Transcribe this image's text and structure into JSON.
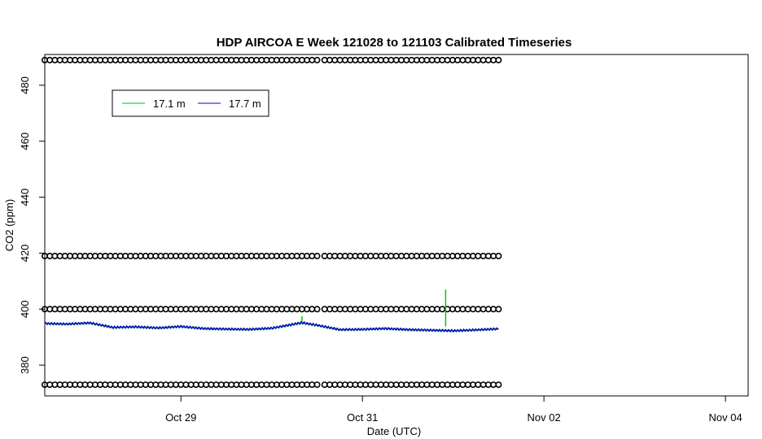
{
  "chart_data": {
    "type": "line",
    "title": "HDP AIRCOA E  Week 121028 to 121103  Calibrated Timeseries",
    "xlabel": "Date (UTC)",
    "ylabel": "CO2 (ppm)",
    "xlim": [
      "2012-10-27 12:00",
      "2012-11-04 06:00"
    ],
    "ylim": [
      369,
      491
    ],
    "x_ticks": [
      {
        "label": "Oct 29",
        "x": "2012-10-29 00:00"
      },
      {
        "label": "Oct 31",
        "x": "2012-10-31 00:00"
      },
      {
        "label": "Nov 02",
        "x": "2012-11-02 00:00"
      },
      {
        "label": "Nov 04",
        "x": "2012-11-04 00:00"
      }
    ],
    "y_ticks": [
      {
        "label": "380",
        "y": 380
      },
      {
        "label": "400",
        "y": 400
      },
      {
        "label": "420",
        "y": 420
      },
      {
        "label": "440",
        "y": 440
      },
      {
        "label": "460",
        "y": 460
      },
      {
        "label": "480",
        "y": 480
      }
    ],
    "grid": false,
    "legend": {
      "position": "top-left",
      "entries": [
        {
          "label": "17.1 m",
          "color": "#00c000"
        },
        {
          "label": "17.7 m",
          "color": "#0000cc"
        }
      ]
    },
    "series": [
      {
        "name": "17.1 m",
        "color": "#00c000",
        "points": [
          [
            "2012-10-27 12:00",
            394.8
          ],
          [
            "2012-10-27 18:00",
            394.6
          ],
          [
            "2012-10-28 00:00",
            395.0
          ],
          [
            "2012-10-28 06:00",
            393.4
          ],
          [
            "2012-10-28 12:00",
            393.6
          ],
          [
            "2012-10-28 18:00",
            393.2
          ],
          [
            "2012-10-29 00:00",
            393.8
          ],
          [
            "2012-10-29 06:00",
            393.0
          ],
          [
            "2012-10-29 12:00",
            392.8
          ],
          [
            "2012-10-29 18:00",
            392.7
          ],
          [
            "2012-10-30 00:00",
            393.1
          ],
          [
            "2012-10-30 08:00",
            395.0
          ],
          [
            "2012-10-30 12:00",
            394.2
          ],
          [
            "2012-10-30 18:00",
            392.6
          ],
          [
            "2012-10-31 00:00",
            392.7
          ],
          [
            "2012-10-31 06:00",
            393.0
          ],
          [
            "2012-10-31 12:00",
            392.6
          ],
          [
            "2012-10-31 18:00",
            392.4
          ],
          [
            "2012-11-01 00:00",
            392.2
          ],
          [
            "2012-11-01 06:00",
            392.5
          ],
          [
            "2012-11-01 12:00",
            392.9
          ]
        ],
        "spikes": [
          {
            "x": "2012-10-31 22:00",
            "from": 393.8,
            "to": 407.0
          },
          {
            "x": "2012-10-30 08:00",
            "from": 395.0,
            "to": 397.5
          }
        ]
      },
      {
        "name": "17.7 m",
        "color": "#0000cc",
        "points": [
          [
            "2012-10-27 12:00",
            394.9
          ],
          [
            "2012-10-27 18:00",
            394.7
          ],
          [
            "2012-10-28 00:00",
            395.1
          ],
          [
            "2012-10-28 06:00",
            393.5
          ],
          [
            "2012-10-28 12:00",
            393.7
          ],
          [
            "2012-10-28 18:00",
            393.3
          ],
          [
            "2012-10-29 00:00",
            393.8
          ],
          [
            "2012-10-29 06:00",
            393.1
          ],
          [
            "2012-10-29 12:00",
            392.9
          ],
          [
            "2012-10-29 18:00",
            392.8
          ],
          [
            "2012-10-30 00:00",
            393.2
          ],
          [
            "2012-10-30 08:00",
            395.2
          ],
          [
            "2012-10-30 12:00",
            394.3
          ],
          [
            "2012-10-30 18:00",
            392.7
          ],
          [
            "2012-10-31 00:00",
            392.8
          ],
          [
            "2012-10-31 06:00",
            393.1
          ],
          [
            "2012-10-31 12:00",
            392.7
          ],
          [
            "2012-10-31 18:00",
            392.5
          ],
          [
            "2012-11-01 00:00",
            392.3
          ],
          [
            "2012-11-01 06:00",
            392.6
          ],
          [
            "2012-11-01 12:00",
            393.0
          ]
        ]
      },
      {
        "name": "",
        "style": "circles",
        "segments": [
          {
            "from": "2012-10-27 12:00",
            "to": "2012-10-30 12:00"
          },
          {
            "from": "2012-10-30 14:00",
            "to": "2012-11-01 12:00"
          }
        ],
        "levels": [
          373,
          400,
          419,
          489
        ]
      }
    ]
  }
}
